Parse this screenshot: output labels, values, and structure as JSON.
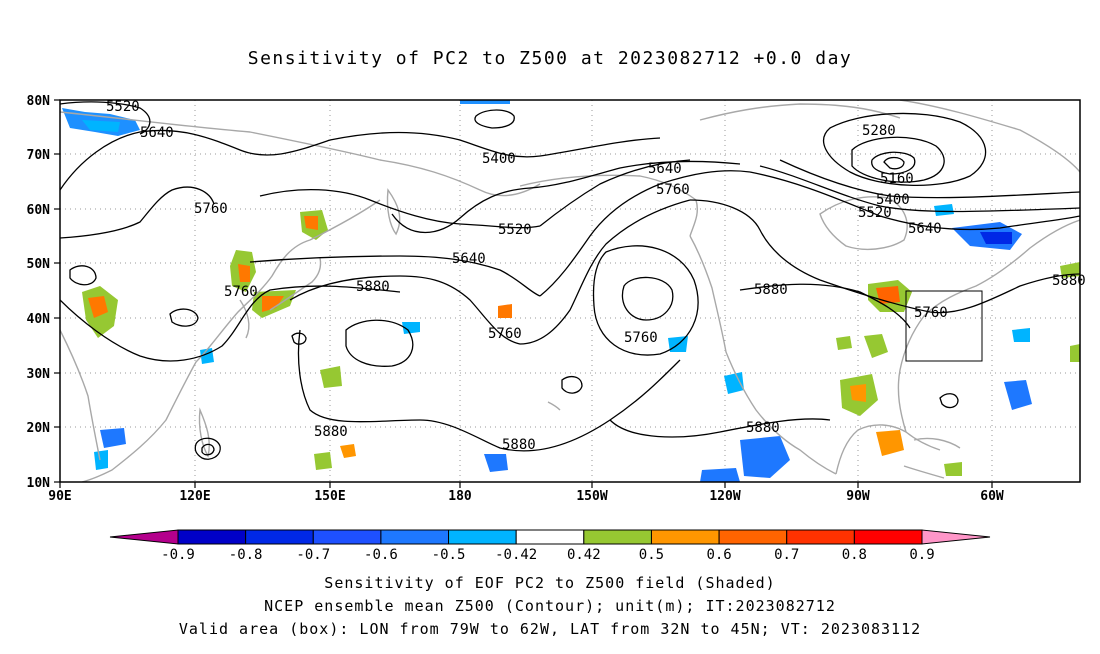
{
  "title": "Sensitivity of PC2 to Z500 at 2023082712 +0.0 day",
  "map": {
    "lon_labels": [
      "90E",
      "120E",
      "150E",
      "180",
      "150W",
      "120W",
      "90W",
      "60W"
    ],
    "lat_labels": [
      "80N",
      "70N",
      "60N",
      "50N",
      "40N",
      "30N",
      "20N",
      "10N"
    ],
    "contour_labels": [
      "5520",
      "5640",
      "5400",
      "5640",
      "5760",
      "5280",
      "5160",
      "5400",
      "5520",
      "5640",
      "5760",
      "5520",
      "5640",
      "5760",
      "5880",
      "5880",
      "5760",
      "5760",
      "5880",
      "5760",
      "588",
      "5880",
      "5880",
      "5880"
    ],
    "box": {
      "lon_range": "79W to 62W",
      "lat_range": "32N to 45N"
    },
    "colors": {
      "contour": "#000000",
      "coast": "#a8a8a8",
      "grid": "#9a9a9a"
    }
  },
  "colorbar": {
    "labels": [
      "-0.9",
      "-0.8",
      "-0.7",
      "-0.6",
      "-0.5",
      "-0.42",
      "0.42",
      "0.5",
      "0.6",
      "0.7",
      "0.8",
      "0.9"
    ],
    "colors": [
      "#b4008c",
      "#0000c8",
      "#0028e6",
      "#1e50ff",
      "#1e78ff",
      "#00b4ff",
      "#ffffff",
      "#96c832",
      "#ff9600",
      "#ff6400",
      "#ff3200",
      "#ff0000",
      "#ff96c8"
    ]
  },
  "footer": {
    "line1": "Sensitivity of EOF PC2 to Z500 field (Shaded)",
    "line2": "NCEP ensemble mean Z500 (Contour); unit(m); IT:2023082712",
    "line3": "Valid area (box): LON from 79W to 62W, LAT from 32N to 45N; VT: 2023083112"
  }
}
